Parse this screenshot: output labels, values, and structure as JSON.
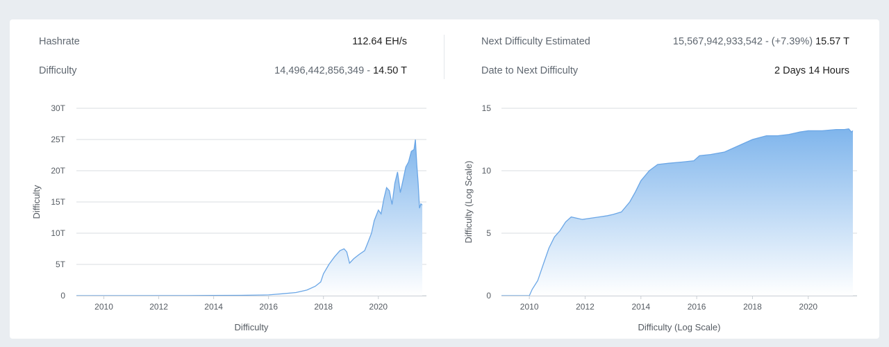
{
  "stats": {
    "left": [
      {
        "label": "Hashrate",
        "value": "112.64 EH/s",
        "value_muted": ""
      },
      {
        "label": "Difficulty",
        "value_muted": "14,496,442,856,349 - ",
        "value": "14.50 T"
      }
    ],
    "right": [
      {
        "label": "Next Difficulty Estimated",
        "value_muted": "15,567,942,933,542 - (+7.39%) ",
        "value": "15.57 T"
      },
      {
        "label": "Date to Next Difficulty",
        "value_muted": "",
        "value": "2 Days 14 Hours"
      }
    ]
  },
  "colors": {
    "area_top": "#7fb5ec",
    "area_bottom": "#ffffff",
    "line": "#6aa6e6",
    "grid": "#d9dde2",
    "text": "#555b62"
  },
  "chart_data": [
    {
      "type": "area",
      "xlabel": "Difficulty",
      "ylabel": "Difficulty",
      "xlim": [
        2009,
        2021.6
      ],
      "ylim": [
        0,
        30
      ],
      "x_ticks": [
        "2010",
        "2012",
        "2014",
        "2016",
        "2018",
        "2020"
      ],
      "y_ticks": [
        "0",
        "5T",
        "10T",
        "15T",
        "20T",
        "25T",
        "30T"
      ],
      "grid": true,
      "legend": "none",
      "x": [
        2009.0,
        2013.0,
        2014.0,
        2015.0,
        2016.0,
        2016.5,
        2017.0,
        2017.4,
        2017.7,
        2017.9,
        2018.0,
        2018.2,
        2018.4,
        2018.6,
        2018.75,
        2018.85,
        2018.95,
        2019.1,
        2019.3,
        2019.5,
        2019.6,
        2019.75,
        2019.85,
        2020.0,
        2020.1,
        2020.2,
        2020.3,
        2020.4,
        2020.5,
        2020.6,
        2020.7,
        2020.8,
        2020.9,
        2021.0,
        2021.1,
        2021.2,
        2021.3,
        2021.35,
        2021.4,
        2021.45,
        2021.5,
        2021.55,
        2021.6
      ],
      "values": [
        0.0,
        0.01,
        0.05,
        0.06,
        0.12,
        0.3,
        0.5,
        0.9,
        1.5,
        2.2,
        3.5,
        5.0,
        6.2,
        7.2,
        7.5,
        7.0,
        5.2,
        5.9,
        6.6,
        7.2,
        8.3,
        10.0,
        12.0,
        13.7,
        13.1,
        15.5,
        17.3,
        16.8,
        14.6,
        18.0,
        19.8,
        16.5,
        18.5,
        20.6,
        21.4,
        23.1,
        23.4,
        25.0,
        21.0,
        18.0,
        14.0,
        14.7,
        14.5
      ]
    },
    {
      "type": "area",
      "xlabel": "Difficulty (Log Scale)",
      "ylabel": "Difficulty (Log Scale)",
      "xlim": [
        2009,
        2021.6
      ],
      "ylim": [
        0,
        15
      ],
      "x_ticks": [
        "2010",
        "2012",
        "2014",
        "2016",
        "2018",
        "2020"
      ],
      "y_ticks": [
        "0",
        "5",
        "10",
        "15"
      ],
      "grid": true,
      "legend": "none",
      "x": [
        2009.0,
        2010.0,
        2010.1,
        2010.3,
        2010.5,
        2010.7,
        2010.9,
        2011.1,
        2011.3,
        2011.5,
        2011.7,
        2011.9,
        2012.2,
        2012.5,
        2012.8,
        2013.0,
        2013.3,
        2013.6,
        2013.8,
        2014.0,
        2014.3,
        2014.6,
        2015.0,
        2015.5,
        2015.9,
        2016.1,
        2016.5,
        2017.0,
        2017.5,
        2018.0,
        2018.5,
        2018.9,
        2019.3,
        2019.7,
        2020.0,
        2020.5,
        2021.0,
        2021.3,
        2021.45,
        2021.55,
        2021.6
      ],
      "values": [
        0.0,
        0.0,
        0.5,
        1.2,
        2.5,
        3.8,
        4.7,
        5.2,
        5.9,
        6.3,
        6.2,
        6.1,
        6.2,
        6.3,
        6.4,
        6.5,
        6.7,
        7.5,
        8.3,
        9.2,
        10.0,
        10.5,
        10.6,
        10.7,
        10.8,
        11.2,
        11.3,
        11.5,
        12.0,
        12.5,
        12.8,
        12.8,
        12.9,
        13.1,
        13.2,
        13.2,
        13.3,
        13.3,
        13.35,
        13.1,
        13.2
      ]
    }
  ]
}
